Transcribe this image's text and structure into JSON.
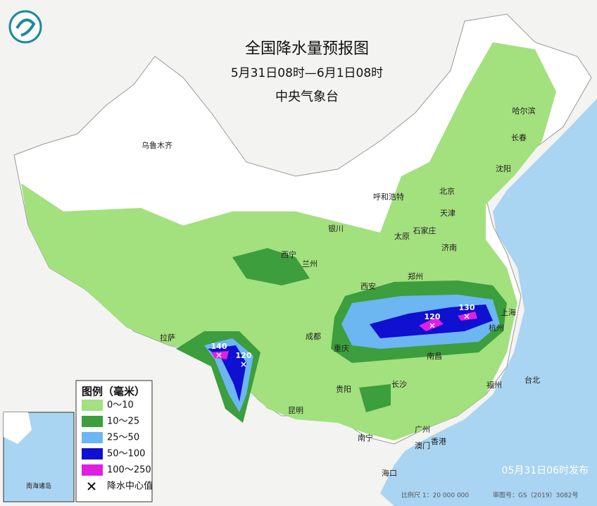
{
  "header": {
    "title": "全国降水量预报图",
    "period": "5月31日08时—6月1日08时",
    "issuer": "中央气象台"
  },
  "legend": {
    "title": "图例（毫米）",
    "items": [
      "0～10",
      "10～25",
      "25～50",
      "50～100",
      "100～250"
    ],
    "center_label": "降水中心值"
  },
  "cities": [
    "乌鲁木齐",
    "哈尔滨",
    "长春",
    "沈阳",
    "呼和浩特",
    "北京",
    "天津",
    "银川",
    "太原",
    "石家庄",
    "西宁",
    "兰州",
    "济南",
    "郑州",
    "西安",
    "上海",
    "杭州",
    "成都",
    "重庆",
    "拉萨",
    "长沙",
    "南昌",
    "福州",
    "台北",
    "贵阳",
    "昆明",
    "广州",
    "南宁",
    "澳门",
    "香港",
    "海口"
  ],
  "rain_centers": [
    140,
    120,
    120,
    130
  ],
  "inset": {
    "label": "南海诸岛"
  },
  "footer": {
    "issued": "05月31日06时发布",
    "scale": "比例尺 1：20 000 000",
    "approval": "审图号：GS（2019）3082号"
  }
}
